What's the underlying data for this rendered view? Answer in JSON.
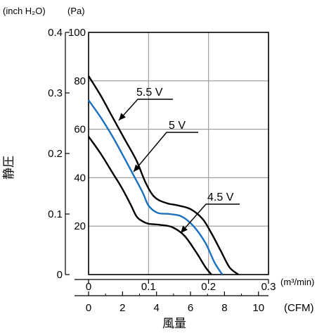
{
  "chart_data": {
    "type": "line",
    "title": "",
    "ylabel": "静圧",
    "xlabel": "風量",
    "y_primary": {
      "unit": "(Pa)",
      "range": [
        0,
        100
      ],
      "ticks": [
        "0",
        "20",
        "40",
        "60",
        "80",
        "100"
      ]
    },
    "y_secondary": {
      "unit": "(inch H₂O)",
      "range": [
        0,
        0.4
      ],
      "ticks": [
        "0",
        "0.1",
        "0.2",
        "0.3",
        "0.4"
      ]
    },
    "x_primary": {
      "unit": "(m³/min)",
      "range": [
        0,
        0.3
      ],
      "ticks": [
        "0",
        "0.1",
        "0.2",
        "0.3"
      ]
    },
    "x_secondary": {
      "unit": "(CFM)",
      "range": [
        0,
        10.59
      ],
      "ticks": [
        "0",
        "2",
        "4",
        "6",
        "8",
        "10"
      ]
    },
    "grid": true,
    "series": [
      {
        "name": "5.5 V",
        "color": "#000000",
        "x": [
          0,
          0.02,
          0.04,
          0.06,
          0.08,
          0.095,
          0.11,
          0.13,
          0.15,
          0.17,
          0.19,
          0.205,
          0.22,
          0.235,
          0.25
        ],
        "y": [
          82,
          74,
          65,
          56,
          47,
          38,
          32,
          29.5,
          28.5,
          27,
          23,
          17,
          10,
          3,
          0
        ]
      },
      {
        "name": "5 V",
        "color": "#1a6fc0",
        "x": [
          0,
          0.02,
          0.04,
          0.06,
          0.075,
          0.09,
          0.1,
          0.115,
          0.135,
          0.155,
          0.175,
          0.195,
          0.21,
          0.223
        ],
        "y": [
          72,
          65,
          57,
          48,
          41,
          34,
          28.5,
          25.5,
          25,
          24,
          20,
          13,
          5,
          0
        ]
      },
      {
        "name": "4.5 V",
        "color": "#000000",
        "x": [
          0,
          0.02,
          0.04,
          0.055,
          0.07,
          0.08,
          0.09,
          0.1,
          0.12,
          0.14,
          0.16,
          0.18,
          0.195,
          0.205
        ],
        "y": [
          57,
          50,
          42,
          36,
          29,
          24,
          22,
          21,
          20.5,
          19.5,
          16,
          9,
          3,
          0
        ]
      }
    ],
    "annotations": [
      {
        "text": "5.5 V",
        "series": "5.5 V"
      },
      {
        "text": "5 V",
        "series": "5 V"
      },
      {
        "text": "4.5 V",
        "series": "4.5 V"
      }
    ]
  }
}
